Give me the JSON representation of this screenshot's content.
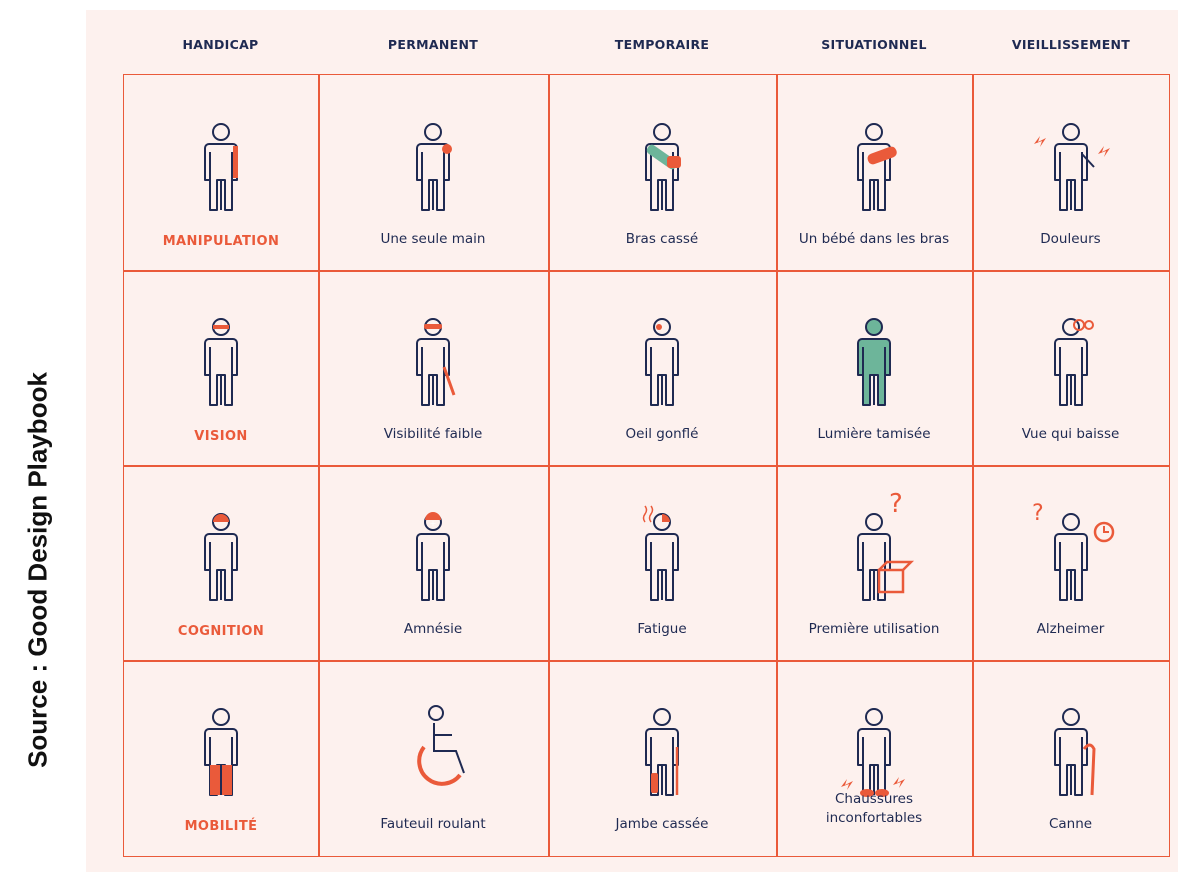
{
  "source_text": "Source : Good Design Playbook",
  "headers": [
    "HANDICAP",
    "PERMANENT",
    "TEMPORAIRE",
    "SITUATIONNEL",
    "VIEILLISSEMENT"
  ],
  "rows": [
    {
      "category": "MANIPULATION",
      "cells": [
        "Une seule main",
        "Bras cassé",
        "Un bébé dans les bras",
        "Douleurs"
      ],
      "icons": [
        "person-arm-highlight-icon",
        "person-one-arm-icon",
        "person-arm-sling-icon",
        "person-holding-baby-icon",
        "elderly-person-pain-icon"
      ]
    },
    {
      "category": "VISION",
      "cells": [
        "Visibilité faible",
        "Oeil gonflé",
        "Lumière tamisée",
        "Vue qui baisse"
      ],
      "icons": [
        "person-eyes-highlight-icon",
        "person-glasses-cane-icon",
        "person-swollen-eye-icon",
        "person-dim-light-icon",
        "elderly-person-glasses-icon"
      ]
    },
    {
      "category": "COGNITION",
      "cells": [
        "Amnésie",
        "Fatigue",
        "Première utilisation",
        "Alzheimer"
      ],
      "icons": [
        "person-head-highlight-icon",
        "person-bandaged-head-icon",
        "person-tired-icon",
        "person-question-box-icon",
        "elderly-person-question-clock-icon"
      ]
    },
    {
      "category": "MOBILITÉ",
      "cells": [
        "Fauteuil roulant",
        "Jambe cassée",
        "Chaussures inconfortables",
        "Canne"
      ],
      "icons": [
        "person-legs-highlight-icon",
        "wheelchair-icon",
        "person-crutch-icon",
        "person-painful-shoes-icon",
        "elderly-person-cane-icon"
      ]
    }
  ],
  "colors": {
    "accent": "#ea5a3a",
    "navy": "#1f2a52",
    "teal": "#6db59a",
    "background": "#fdf1ee"
  }
}
